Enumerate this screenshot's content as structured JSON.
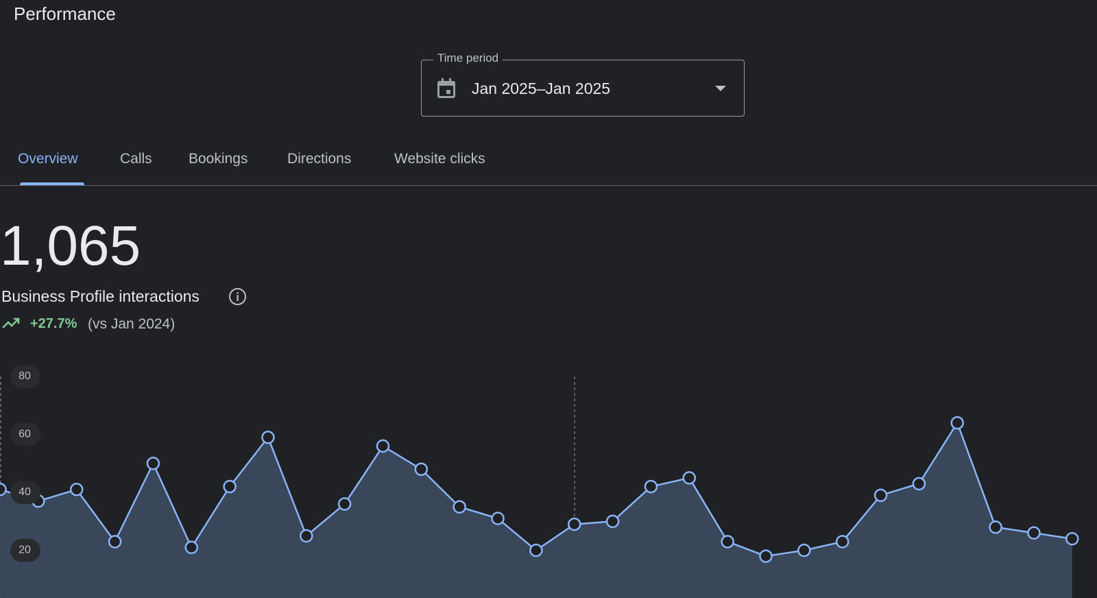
{
  "header": {
    "title": "Performance"
  },
  "time_period": {
    "label": "Time period",
    "value": "Jan 2025–Jan 2025"
  },
  "tabs": [
    "Overview",
    "Calls",
    "Bookings",
    "Directions",
    "Website clicks"
  ],
  "summary": {
    "total": "1,065",
    "label": "Business Profile interactions",
    "change": "+27.7%",
    "comparison": "(vs Jan 2024)"
  },
  "chart_data": {
    "type": "area",
    "values": [
      41,
      37,
      41,
      23,
      50,
      21,
      42,
      59,
      25,
      36,
      56,
      48,
      35,
      31,
      20,
      29,
      30,
      42,
      45,
      23,
      18,
      20,
      23,
      39,
      43,
      64,
      28,
      26,
      24
    ],
    "color": "#8ab4f8",
    "ylim": [
      0,
      80
    ],
    "yticks": [
      20,
      40,
      60,
      80
    ]
  }
}
